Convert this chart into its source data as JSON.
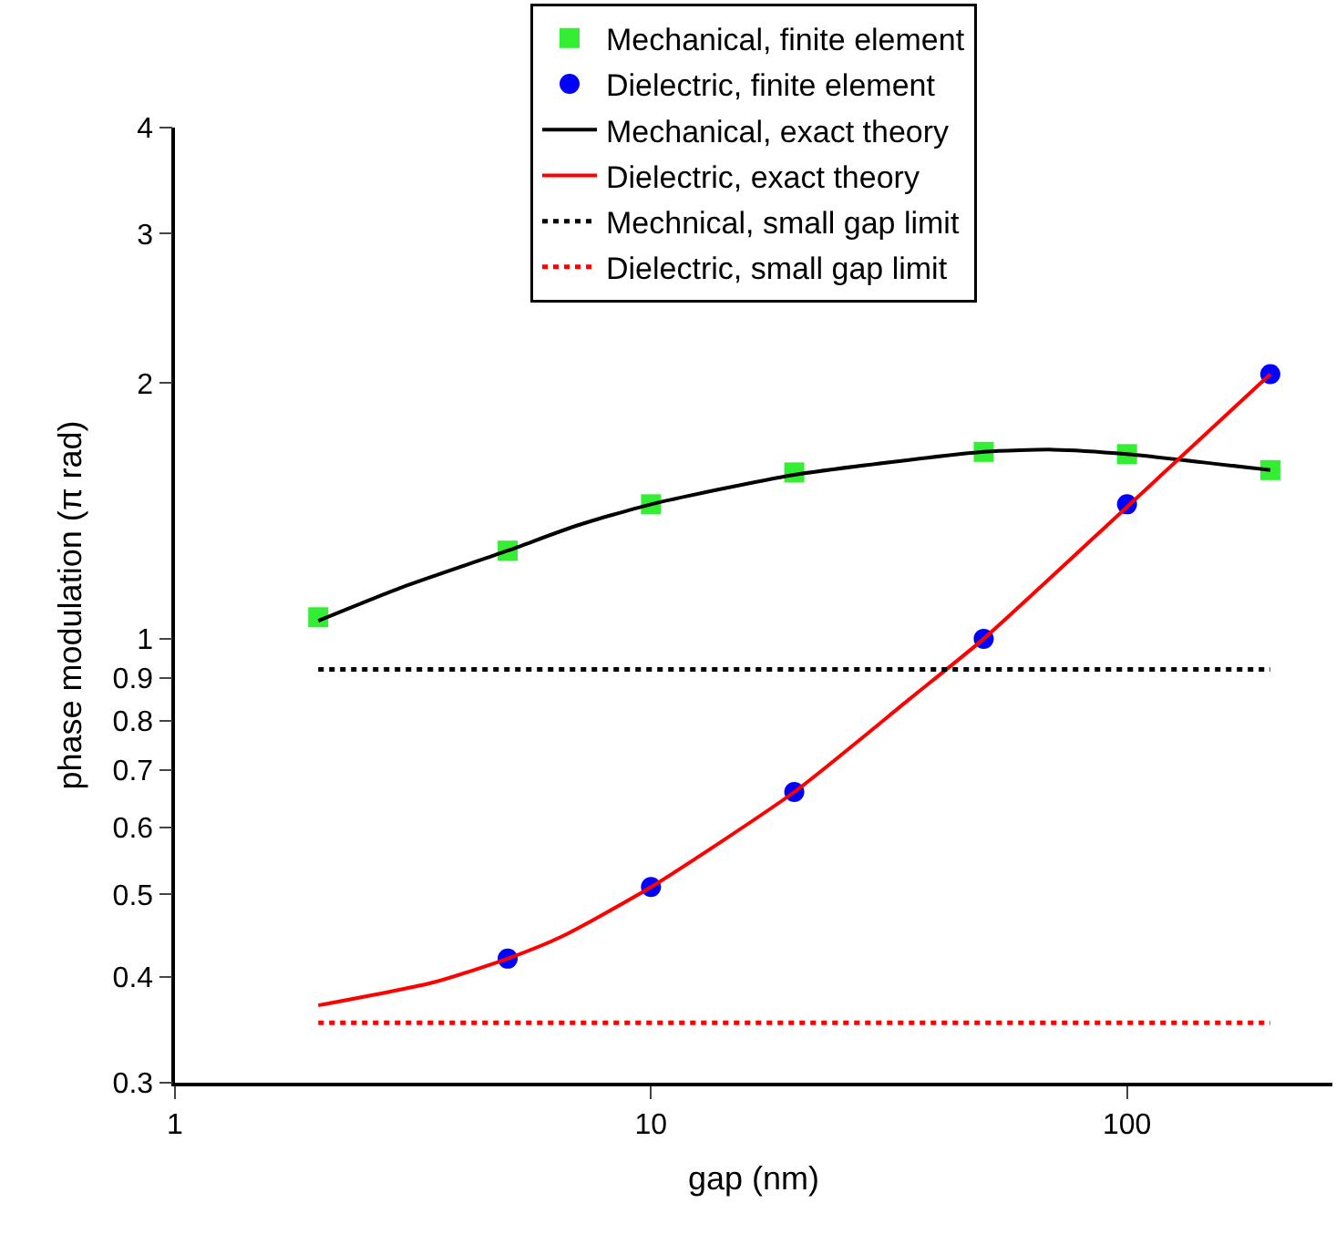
{
  "chart_data": {
    "type": "line",
    "xlabel": "gap (nm)",
    "ylabel": "phase modulation (π rad)",
    "log": "xy",
    "grid": false,
    "legend": "top",
    "xlim": [
      1,
      270
    ],
    "xticks": [
      1,
      10,
      100
    ],
    "ylim": [
      0.3,
      4
    ],
    "yticks": [
      0.3,
      0.4,
      0.5,
      0.6,
      0.7,
      0.8,
      0.9,
      1,
      2,
      3,
      4
    ],
    "series": [
      {
        "name": "Mechanical, finite element",
        "type": "scatter",
        "marker": "square",
        "color": "#33ee33",
        "x": [
          2,
          5,
          10,
          20,
          50,
          100,
          200
        ],
        "values": [
          1.06,
          1.27,
          1.44,
          1.57,
          1.66,
          1.65,
          1.58
        ]
      },
      {
        "name": "Dielectric, finite element",
        "type": "scatter",
        "marker": "circle",
        "color": "#0000ff",
        "x": [
          5,
          10,
          20,
          50,
          100,
          200
        ],
        "values": [
          0.42,
          0.51,
          0.66,
          1.0,
          1.44,
          2.05
        ]
      },
      {
        "name": "Mechanical, exact theory",
        "type": "line",
        "line_style": "solid",
        "color": "#000000",
        "x": [
          2,
          3,
          5,
          7,
          10,
          20,
          50,
          70,
          100,
          200
        ],
        "values": [
          1.05,
          1.15,
          1.27,
          1.36,
          1.44,
          1.56,
          1.66,
          1.67,
          1.65,
          1.58
        ]
      },
      {
        "name": "Dielectric, exact theory",
        "type": "line",
        "line_style": "solid",
        "color": "#ff0000",
        "x": [
          2,
          3.5,
          5,
          6.5,
          10,
          20,
          35,
          50,
          100,
          200
        ],
        "values": [
          0.37,
          0.394,
          0.42,
          0.446,
          0.51,
          0.66,
          0.85,
          1.0,
          1.43,
          2.05
        ]
      },
      {
        "name": "Mechnical, small gap limit",
        "type": "line",
        "line_style": "dotted",
        "color": "#000000",
        "x": [
          2,
          200
        ],
        "values": [
          0.92,
          0.92
        ]
      },
      {
        "name": "Dielectric, small gap limit",
        "type": "line",
        "line_style": "dotted",
        "color": "#ff0000",
        "x": [
          2,
          200
        ],
        "values": [
          0.353,
          0.353
        ]
      }
    ]
  }
}
